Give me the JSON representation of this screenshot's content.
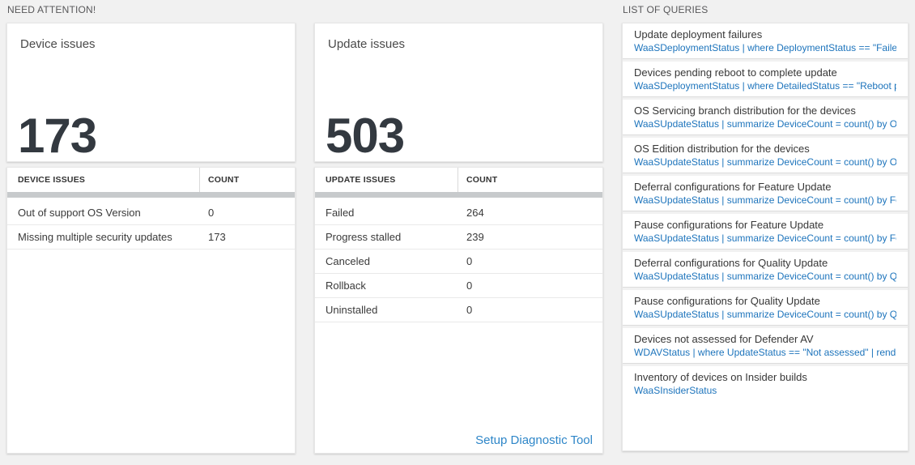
{
  "need_attention": {
    "label": "NEED ATTENTION!"
  },
  "list_of_queries": {
    "label": "LIST OF QUERIES"
  },
  "device_issues": {
    "tile_title": "Device issues",
    "tile_count": "173",
    "table": {
      "col1": "DEVICE ISSUES",
      "col2": "COUNT",
      "rows": [
        {
          "label": "Out of support OS Version",
          "count": "0"
        },
        {
          "label": "Missing multiple security updates",
          "count": "173"
        }
      ]
    }
  },
  "update_issues": {
    "tile_title": "Update issues",
    "tile_count": "503",
    "table": {
      "col1": "UPDATE ISSUES",
      "col2": "COUNT",
      "rows": [
        {
          "label": "Failed",
          "count": "264"
        },
        {
          "label": "Progress stalled",
          "count": "239"
        },
        {
          "label": "Canceled",
          "count": "0"
        },
        {
          "label": "Rollback",
          "count": "0"
        },
        {
          "label": "Uninstalled",
          "count": "0"
        }
      ]
    },
    "footer_link": "Setup Diagnostic Tool"
  },
  "queries": [
    {
      "title": "Update deployment failures",
      "query": "WaaSDeploymentStatus | where DeploymentStatus == \"Failed\" |..."
    },
    {
      "title": "Devices pending reboot to complete update",
      "query": "WaaSDeploymentStatus | where DetailedStatus == \"Reboot pend..."
    },
    {
      "title": "OS Servicing branch distribution for the devices",
      "query": "WaaSUpdateStatus | summarize DeviceCount = count() by OSSer..."
    },
    {
      "title": "OS Edition distribution for the devices",
      "query": "WaaSUpdateStatus | summarize DeviceCount = count() by OSEdit..."
    },
    {
      "title": "Deferral configurations for Feature Update",
      "query": "WaaSUpdateStatus | summarize DeviceCount = count() by Featur..."
    },
    {
      "title": "Pause configurations for Feature Update",
      "query": "WaaSUpdateStatus | summarize DeviceCount = count() by Featur..."
    },
    {
      "title": "Deferral configurations for Quality Update",
      "query": "WaaSUpdateStatus | summarize DeviceCount = count() by Qualit..."
    },
    {
      "title": "Pause configurations for Quality Update",
      "query": "WaaSUpdateStatus | summarize DeviceCount = count() by Qualit..."
    },
    {
      "title": "Devices not assessed for Defender AV",
      "query": "WDAVStatus | where UpdateStatus == \"Not assessed\" | render ta..."
    },
    {
      "title": "Inventory of devices on Insider builds",
      "query": "WaaSInsiderStatus"
    }
  ],
  "colors": {
    "page_bg": "#f1f1f1",
    "query_blue": "#1d74bc",
    "link_blue": "#2e86c8",
    "number_dark": "#333940",
    "scrollbar_gray": "#c7cacc"
  }
}
